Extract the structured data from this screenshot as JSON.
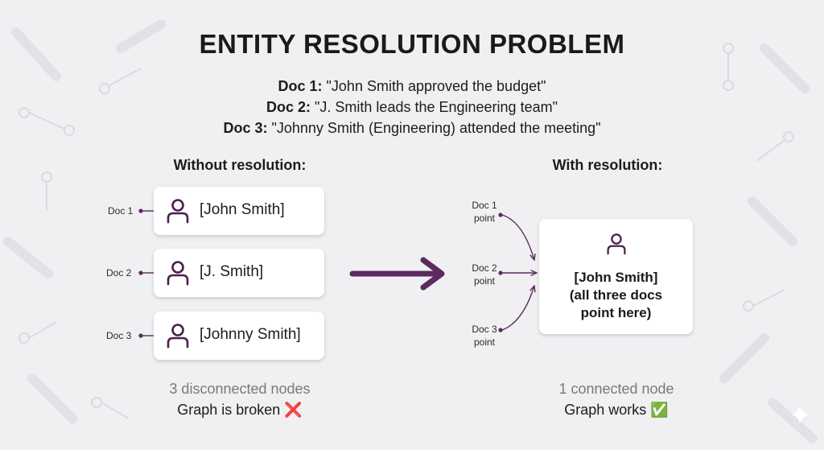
{
  "title": "ENTITY RESOLUTION PROBLEM",
  "docs": [
    {
      "label": "Doc 1:",
      "text": "\"John Smith approved the budget\""
    },
    {
      "label": "Doc 2:",
      "text": "\"J. Smith leads the Engineering team\""
    },
    {
      "label": "Doc 3:",
      "text": "\"Johnny Smith (Engineering) attended the meeting\""
    }
  ],
  "left": {
    "heading": "Without resolution:",
    "items": [
      {
        "doc": "Doc 1",
        "name": "[John Smith]"
      },
      {
        "doc": "Doc 2",
        "name": "[J. Smith]"
      },
      {
        "doc": "Doc 3",
        "name": "[Johnny Smith]"
      }
    ],
    "caption_muted": "3 disconnected nodes",
    "caption_main": "Graph is broken ❌"
  },
  "right": {
    "heading": "With resolution:",
    "pointers": [
      {
        "doc": "Doc 1",
        "word": "point"
      },
      {
        "doc": "Doc 2",
        "word": "point"
      },
      {
        "doc": "Doc 3",
        "word": "point"
      }
    ],
    "merged_lines": [
      "[John Smith]",
      "(all three docs",
      "point here)"
    ],
    "caption_muted": "1 connected node",
    "caption_main": "Graph works ✅"
  },
  "colors": {
    "accent": "#5b2a5e",
    "muted": "#7a7a7a",
    "background": "#f0eff2"
  },
  "icons": [
    "person-icon",
    "arrow-right-icon",
    "sparkle-icon"
  ]
}
